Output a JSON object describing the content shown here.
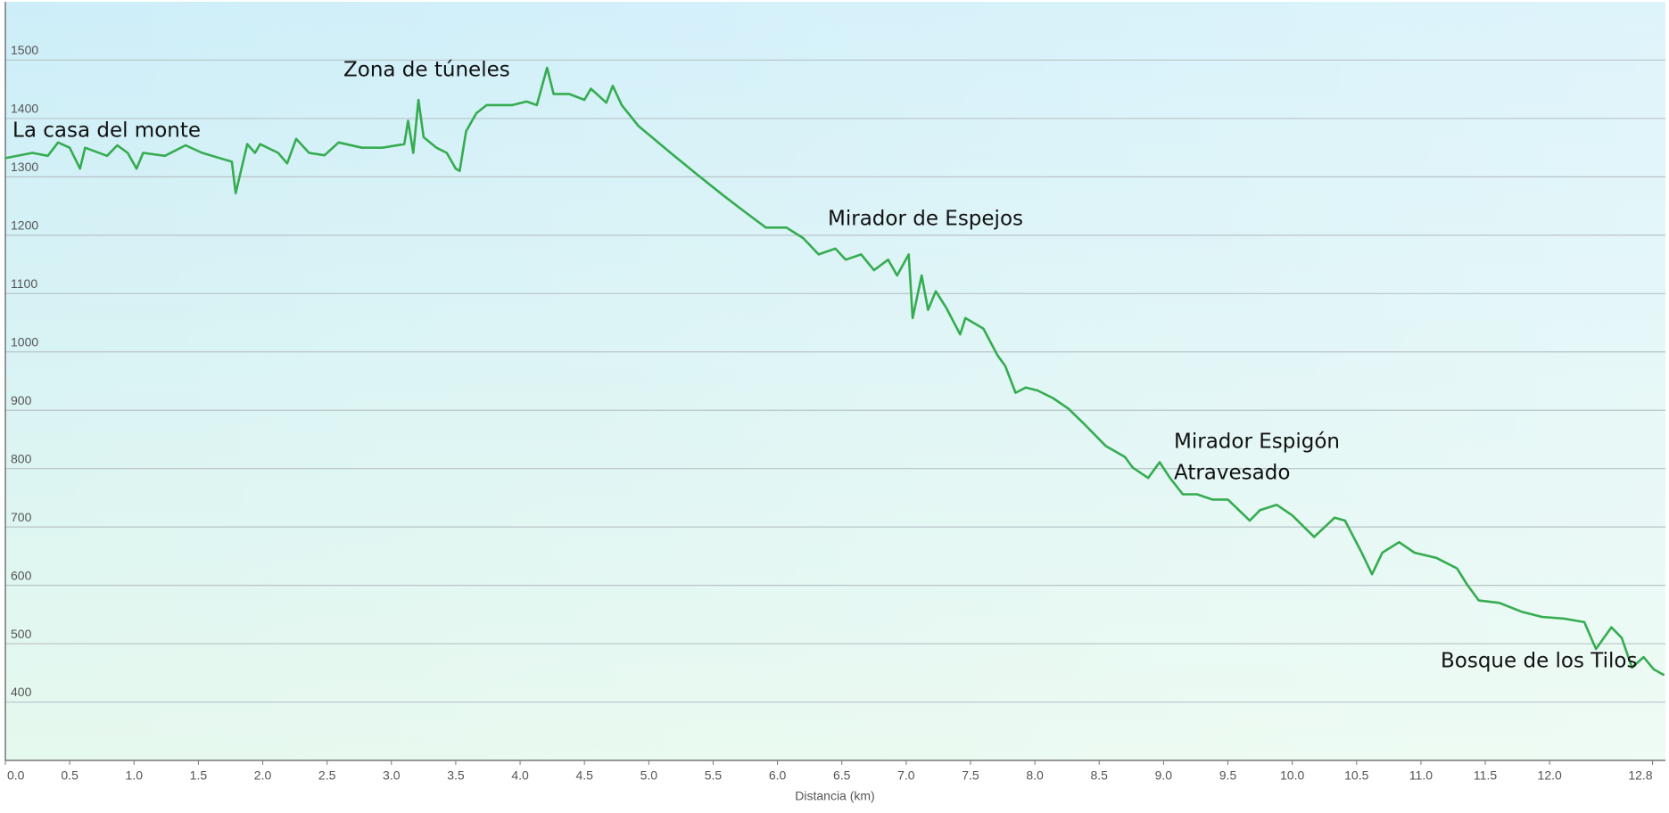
{
  "chart_data": {
    "type": "line",
    "x_label": "Distancia  (km)",
    "annotations": [
      "La casa del monte",
      "Zona de túneles",
      "Mirador de Espejos",
      "Mirador Espigón",
      "Atravesado",
      "Bosque de los Tilos"
    ],
    "xlim": [
      0,
      12.9
    ],
    "ylim": [
      300,
      1600
    ],
    "xticks": [
      {
        "value": 0,
        "label": "0.0"
      },
      0.5,
      {
        "value": 1,
        "label": "1.0"
      },
      1.5,
      {
        "value": 2,
        "label": "2.0"
      },
      2.5,
      {
        "value": 3,
        "label": "3.0"
      },
      3.5,
      {
        "value": 4,
        "label": "4.0"
      },
      4.5,
      {
        "value": 5,
        "label": "5.0"
      },
      5.5,
      {
        "value": 6,
        "label": "6.0"
      },
      6.5,
      {
        "value": 7,
        "label": "7.0"
      },
      7.5,
      {
        "value": 8,
        "label": "8.0"
      },
      8.5,
      {
        "value": 9,
        "label": "9.0"
      },
      9.5,
      {
        "value": 10,
        "label": "10.0"
      },
      10.5,
      {
        "value": 11,
        "label": "11.0"
      },
      11.5,
      {
        "value": 12,
        "label": "12.0"
      },
      12.8
    ],
    "yticks": [
      400,
      500,
      600,
      700,
      800,
      900,
      1000,
      1100,
      1200,
      1300,
      1400,
      1500
    ],
    "grid": true,
    "series": [
      {
        "color": "#35ac50",
        "x": [
          0,
          0.21,
          0.33,
          0.41,
          0.5,
          0.58,
          0.62,
          0.79,
          0.87,
          0.95,
          1.02,
          1.07,
          1.24,
          1.4,
          1.53,
          1.76,
          1.79,
          1.88,
          1.94,
          1.98,
          2.12,
          2.19,
          2.26,
          2.36,
          2.48,
          2.59,
          2.77,
          2.93,
          3.1,
          3.13,
          3.17,
          3.21,
          3.25,
          3.35,
          3.43,
          3.5,
          3.53,
          3.58,
          3.66,
          3.74,
          3.84,
          3.94,
          4.05,
          4.13,
          4.21,
          4.26,
          4.38,
          4.5,
          4.55,
          4.67,
          4.72,
          4.79,
          4.92,
          5.17,
          5.37,
          5.58,
          5.74,
          5.91,
          6.07,
          6.2,
          6.32,
          6.45,
          6.53,
          6.65,
          6.75,
          6.86,
          6.93,
          7.02,
          7.05,
          7.12,
          7.17,
          7.23,
          7.31,
          7.42,
          7.46,
          7.6,
          7.71,
          7.77,
          7.85,
          7.93,
          8.02,
          8.14,
          8.26,
          8.39,
          8.55,
          8.7,
          8.76,
          8.88,
          8.97,
          9.05,
          9.15,
          9.26,
          9.38,
          9.5,
          9.67,
          9.75,
          9.88,
          10.0,
          10.17,
          10.33,
          10.41,
          10.54,
          10.62,
          10.7,
          10.83,
          10.95,
          11.12,
          11.28,
          11.36,
          11.45,
          11.61,
          11.78,
          11.94,
          12.11,
          12.27,
          12.36,
          12.48,
          12.56,
          12.64,
          12.73,
          12.81,
          12.89
        ],
        "values": [
          1332,
          1341,
          1336,
          1359,
          1350,
          1314,
          1350,
          1336,
          1354,
          1341,
          1314,
          1341,
          1336,
          1354,
          1341,
          1326,
          1272,
          1356,
          1341,
          1356,
          1341,
          1323,
          1365,
          1341,
          1337,
          1359,
          1350,
          1350,
          1356,
          1396,
          1341,
          1432,
          1368,
          1350,
          1341,
          1314,
          1310,
          1378,
          1409,
          1423,
          1423,
          1423,
          1429,
          1423,
          1487,
          1442,
          1442,
          1432,
          1451,
          1427,
          1456,
          1423,
          1387,
          1341,
          1305,
          1268,
          1241,
          1213,
          1213,
          1195,
          1167,
          1177,
          1158,
          1167,
          1140,
          1158,
          1131,
          1167,
          1058,
          1131,
          1072,
          1104,
          1076,
          1030,
          1058,
          1040,
          994,
          976,
          930,
          939,
          934,
          921,
          903,
          875,
          839,
          820,
          802,
          784,
          811,
          784,
          756,
          756,
          747,
          747,
          711,
          729,
          738,
          720,
          683,
          716,
          711,
          656,
          619,
          656,
          674,
          656,
          647,
          629,
          601,
          574,
          570,
          555,
          546,
          543,
          537,
          491,
          528,
          510,
          459,
          477,
          456,
          446
        ]
      }
    ]
  }
}
